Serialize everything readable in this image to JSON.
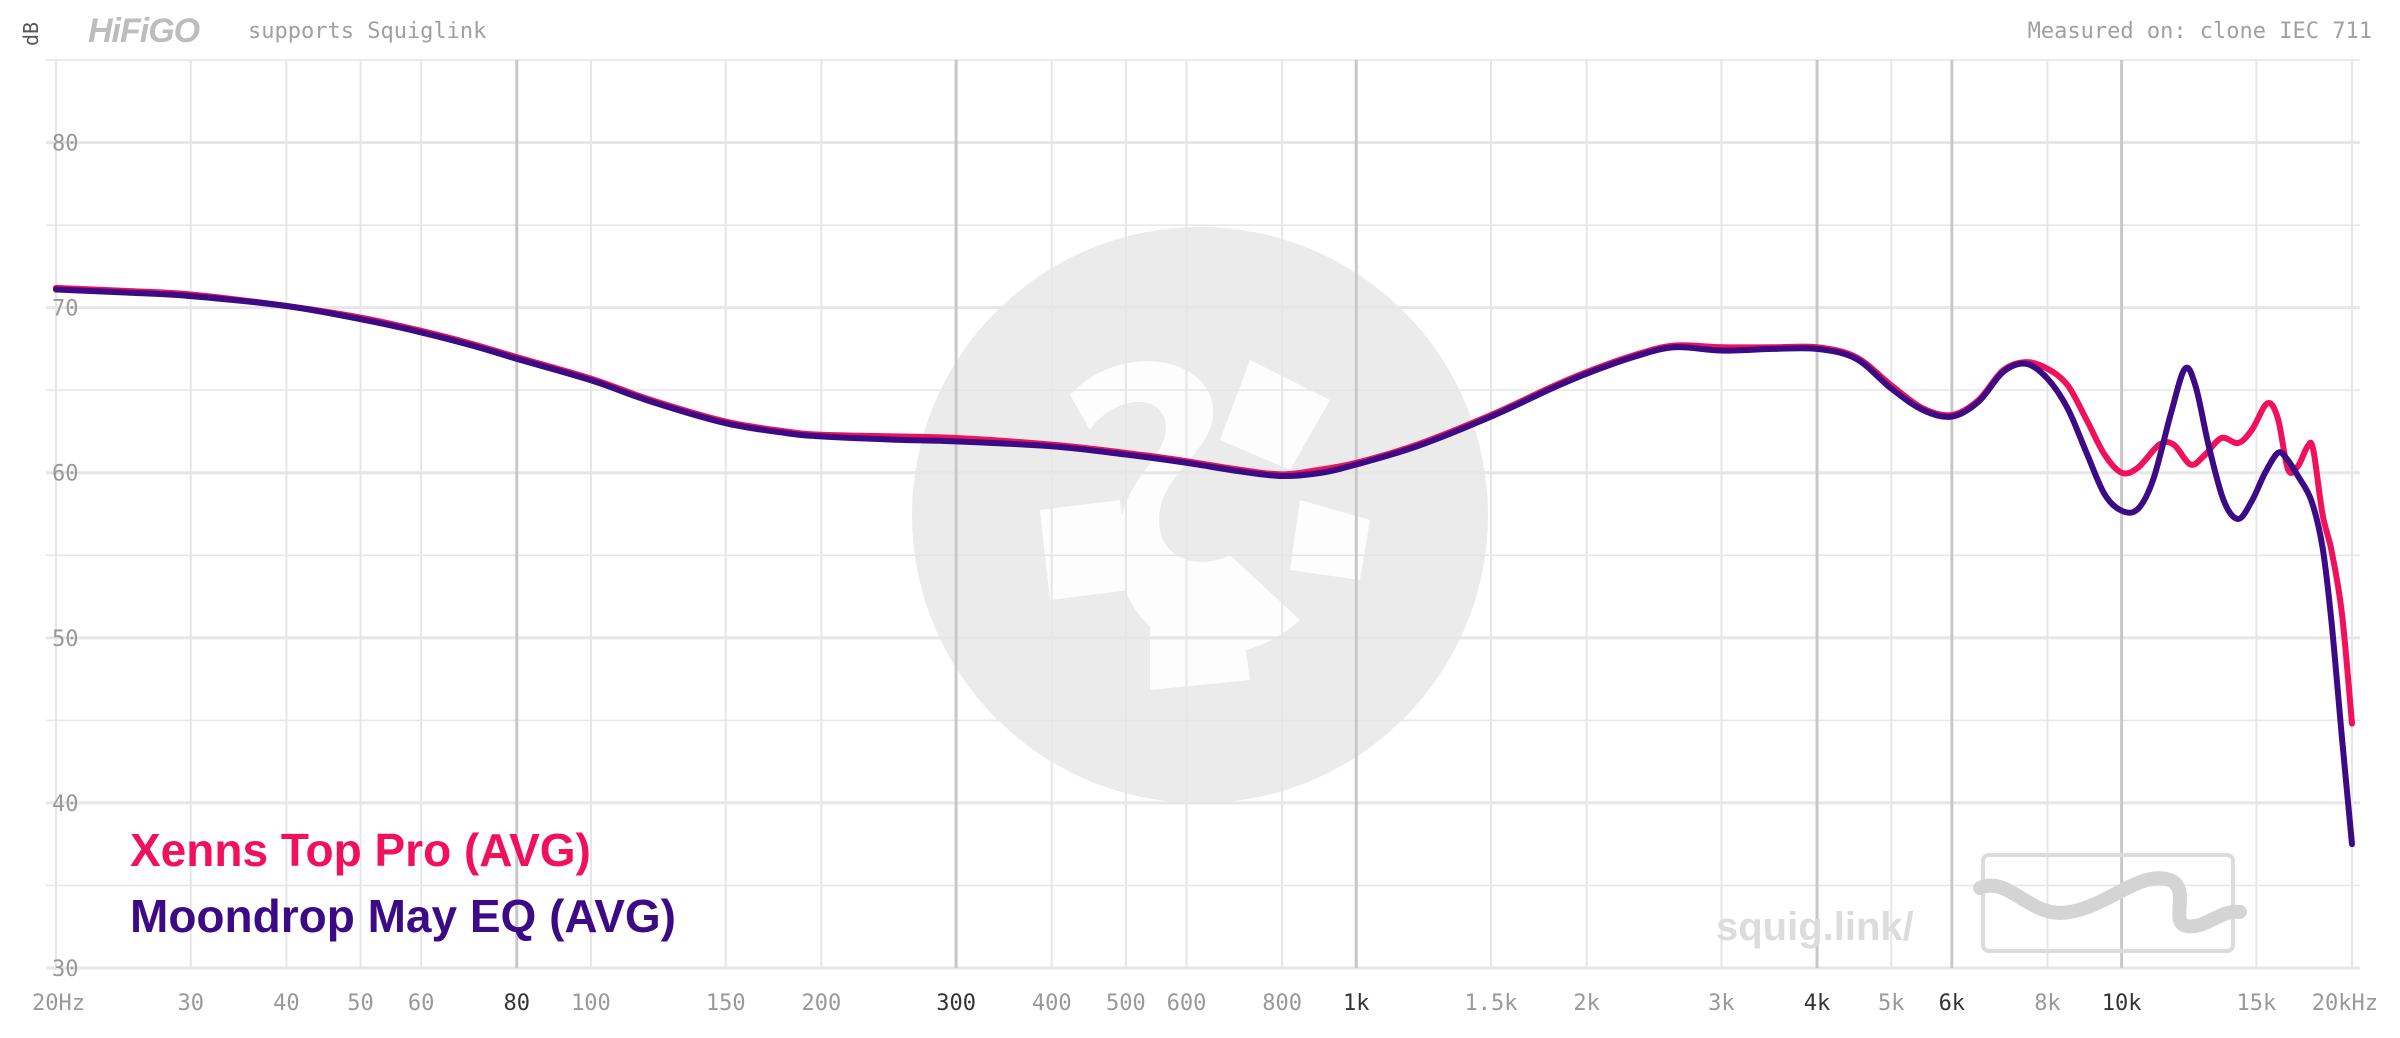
{
  "header": {
    "brand_logo_text": "HiFiGO",
    "tagline": "supports Squiglink",
    "measured_on": "Measured on: clone IEC 711"
  },
  "watermark": {
    "site_text": "squig.link/"
  },
  "colors": {
    "series_1": "#f0115a",
    "series_2": "#3d0a85",
    "grid_minor": "#e6e6e6",
    "grid_major": "#c8c8c8",
    "tick_label": "#999999",
    "tick_label_major": "#333333",
    "watermark": "#ebebeb"
  },
  "chart_data": {
    "type": "line",
    "title": "",
    "xlabel": "",
    "ylabel": "dB",
    "x_scale": "log",
    "xlim": [
      20,
      20000
    ],
    "ylim": [
      30,
      85
    ],
    "grid": true,
    "legend_position": "bottom-left",
    "y_ticks": [
      30,
      40,
      50,
      60,
      70,
      80
    ],
    "x_ticks": [
      {
        "value": 20,
        "label": "20Hz",
        "major": false
      },
      {
        "value": 30,
        "label": "30",
        "major": false
      },
      {
        "value": 40,
        "label": "40",
        "major": false
      },
      {
        "value": 50,
        "label": "50",
        "major": false
      },
      {
        "value": 60,
        "label": "60",
        "major": false
      },
      {
        "value": 80,
        "label": "80",
        "major": true
      },
      {
        "value": 100,
        "label": "100",
        "major": false
      },
      {
        "value": 150,
        "label": "150",
        "major": false
      },
      {
        "value": 200,
        "label": "200",
        "major": false
      },
      {
        "value": 300,
        "label": "300",
        "major": true
      },
      {
        "value": 400,
        "label": "400",
        "major": false
      },
      {
        "value": 500,
        "label": "500",
        "major": false
      },
      {
        "value": 600,
        "label": "600",
        "major": false
      },
      {
        "value": 800,
        "label": "800",
        "major": false
      },
      {
        "value": 1000,
        "label": "1k",
        "major": true
      },
      {
        "value": 1500,
        "label": "1.5k",
        "major": false
      },
      {
        "value": 2000,
        "label": "2k",
        "major": false
      },
      {
        "value": 3000,
        "label": "3k",
        "major": false
      },
      {
        "value": 4000,
        "label": "4k",
        "major": true
      },
      {
        "value": 5000,
        "label": "5k",
        "major": false
      },
      {
        "value": 6000,
        "label": "6k",
        "major": true
      },
      {
        "value": 8000,
        "label": "8k",
        "major": false
      },
      {
        "value": 10000,
        "label": "10k",
        "major": true
      },
      {
        "value": 15000,
        "label": "15k",
        "major": false
      },
      {
        "value": 20000,
        "label": "20kHz",
        "major": false
      }
    ],
    "series": [
      {
        "name": "Xenns Top Pro (AVG)",
        "color": "#f0115a",
        "points": [
          [
            20,
            71.2
          ],
          [
            25,
            71.0
          ],
          [
            30,
            70.8
          ],
          [
            40,
            70.1
          ],
          [
            50,
            69.4
          ],
          [
            60,
            68.6
          ],
          [
            70,
            67.8
          ],
          [
            80,
            67.0
          ],
          [
            100,
            65.7
          ],
          [
            120,
            64.4
          ],
          [
            150,
            63.1
          ],
          [
            180,
            62.5
          ],
          [
            200,
            62.3
          ],
          [
            250,
            62.2
          ],
          [
            300,
            62.1
          ],
          [
            400,
            61.7
          ],
          [
            500,
            61.2
          ],
          [
            600,
            60.7
          ],
          [
            700,
            60.2
          ],
          [
            800,
            59.9
          ],
          [
            900,
            60.2
          ],
          [
            1000,
            60.6
          ],
          [
            1200,
            61.7
          ],
          [
            1500,
            63.5
          ],
          [
            1800,
            65.2
          ],
          [
            2000,
            66.1
          ],
          [
            2300,
            67.1
          ],
          [
            2600,
            67.7
          ],
          [
            3000,
            67.6
          ],
          [
            3500,
            67.6
          ],
          [
            4000,
            67.6
          ],
          [
            4500,
            67.0
          ],
          [
            5000,
            65.3
          ],
          [
            5500,
            63.9
          ],
          [
            6000,
            63.5
          ],
          [
            6500,
            64.4
          ],
          [
            7000,
            66.2
          ],
          [
            7500,
            66.7
          ],
          [
            8000,
            66.3
          ],
          [
            8500,
            65.3
          ],
          [
            9000,
            63.2
          ],
          [
            9500,
            61.1
          ],
          [
            10000,
            60.0
          ],
          [
            10500,
            60.3
          ],
          [
            11200,
            61.7
          ],
          [
            11700,
            61.7
          ],
          [
            12300,
            60.5
          ],
          [
            12800,
            61.0
          ],
          [
            13500,
            62.1
          ],
          [
            14200,
            61.8
          ],
          [
            14800,
            62.6
          ],
          [
            15500,
            64.2
          ],
          [
            16000,
            63.3
          ],
          [
            16500,
            60.2
          ],
          [
            17000,
            60.4
          ],
          [
            17500,
            61.6
          ],
          [
            17800,
            61.4
          ],
          [
            18300,
            57.5
          ],
          [
            18800,
            55.3
          ],
          [
            19400,
            51.5
          ],
          [
            20000,
            44.8
          ]
        ]
      },
      {
        "name": "Moondrop May EQ (AVG)",
        "color": "#3d0a85",
        "points": [
          [
            20,
            71.1
          ],
          [
            25,
            70.9
          ],
          [
            30,
            70.7
          ],
          [
            40,
            70.1
          ],
          [
            50,
            69.3
          ],
          [
            60,
            68.5
          ],
          [
            70,
            67.7
          ],
          [
            80,
            66.9
          ],
          [
            100,
            65.6
          ],
          [
            120,
            64.3
          ],
          [
            150,
            63.0
          ],
          [
            180,
            62.4
          ],
          [
            200,
            62.2
          ],
          [
            250,
            62.0
          ],
          [
            300,
            61.9
          ],
          [
            400,
            61.6
          ],
          [
            500,
            61.1
          ],
          [
            600,
            60.6
          ],
          [
            700,
            60.1
          ],
          [
            800,
            59.8
          ],
          [
            900,
            60.0
          ],
          [
            1000,
            60.5
          ],
          [
            1200,
            61.6
          ],
          [
            1500,
            63.4
          ],
          [
            1800,
            65.1
          ],
          [
            2000,
            66.0
          ],
          [
            2300,
            67.0
          ],
          [
            2600,
            67.6
          ],
          [
            3000,
            67.4
          ],
          [
            3500,
            67.5
          ],
          [
            4000,
            67.5
          ],
          [
            4500,
            66.9
          ],
          [
            5000,
            65.1
          ],
          [
            5500,
            63.8
          ],
          [
            6000,
            63.4
          ],
          [
            6500,
            64.3
          ],
          [
            7000,
            66.1
          ],
          [
            7500,
            66.6
          ],
          [
            8000,
            65.7
          ],
          [
            8500,
            63.9
          ],
          [
            9000,
            61.2
          ],
          [
            9500,
            58.7
          ],
          [
            10000,
            57.7
          ],
          [
            10500,
            57.8
          ],
          [
            11000,
            59.6
          ],
          [
            11600,
            63.6
          ],
          [
            12100,
            66.3
          ],
          [
            12500,
            65.2
          ],
          [
            13000,
            61.6
          ],
          [
            13600,
            58.3
          ],
          [
            14200,
            57.2
          ],
          [
            14800,
            58.3
          ],
          [
            15400,
            60.0
          ],
          [
            16000,
            61.2
          ],
          [
            16400,
            60.9
          ],
          [
            17000,
            59.8
          ],
          [
            17700,
            58.3
          ],
          [
            18300,
            55.5
          ],
          [
            18800,
            51.0
          ],
          [
            19400,
            44.0
          ],
          [
            20000,
            37.5
          ]
        ]
      }
    ]
  }
}
